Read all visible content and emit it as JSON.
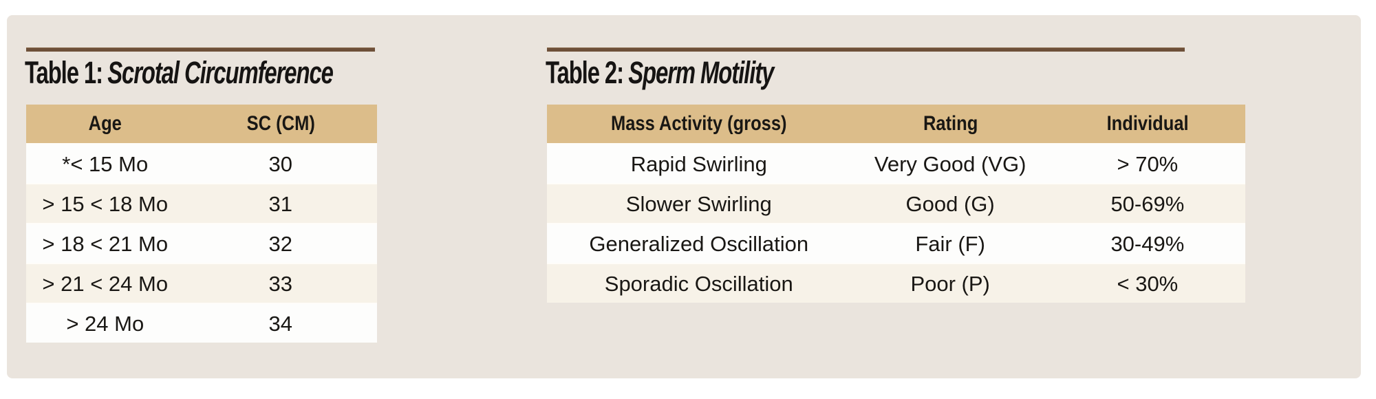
{
  "page": {
    "background_color": "#ffffff",
    "panel_color": "#eae4dd"
  },
  "colors": {
    "header_bg": "#dcbd8a",
    "row_white": "#fdfdfc",
    "row_cream": "#f7f2e8",
    "rule_brown": "#6e5039",
    "text": "#191714"
  },
  "table1": {
    "title_prefix": "Table 1:",
    "title_name": "Scrotal Circumference",
    "columns": [
      "Age",
      "SC (CM)"
    ],
    "rows": [
      [
        "*< 15 Mo",
        "30"
      ],
      [
        "> 15 < 18 Mo",
        "31"
      ],
      [
        "> 18 < 21 Mo",
        "32"
      ],
      [
        "> 21 < 24 Mo",
        "33"
      ],
      [
        "> 24 Mo",
        "34"
      ]
    ]
  },
  "table2": {
    "title_prefix": "Table 2:",
    "title_name": "Sperm Motility",
    "columns": [
      "Mass Activity (gross)",
      "Rating",
      "Individual"
    ],
    "rows": [
      [
        "Rapid Swirling",
        "Very Good (VG)",
        "> 70%"
      ],
      [
        "Slower Swirling",
        "Good (G)",
        "50-69%"
      ],
      [
        "Generalized Oscillation",
        "Fair (F)",
        "30-49%"
      ],
      [
        "Sporadic Oscillation",
        "Poor (P)",
        "< 30%"
      ]
    ]
  }
}
